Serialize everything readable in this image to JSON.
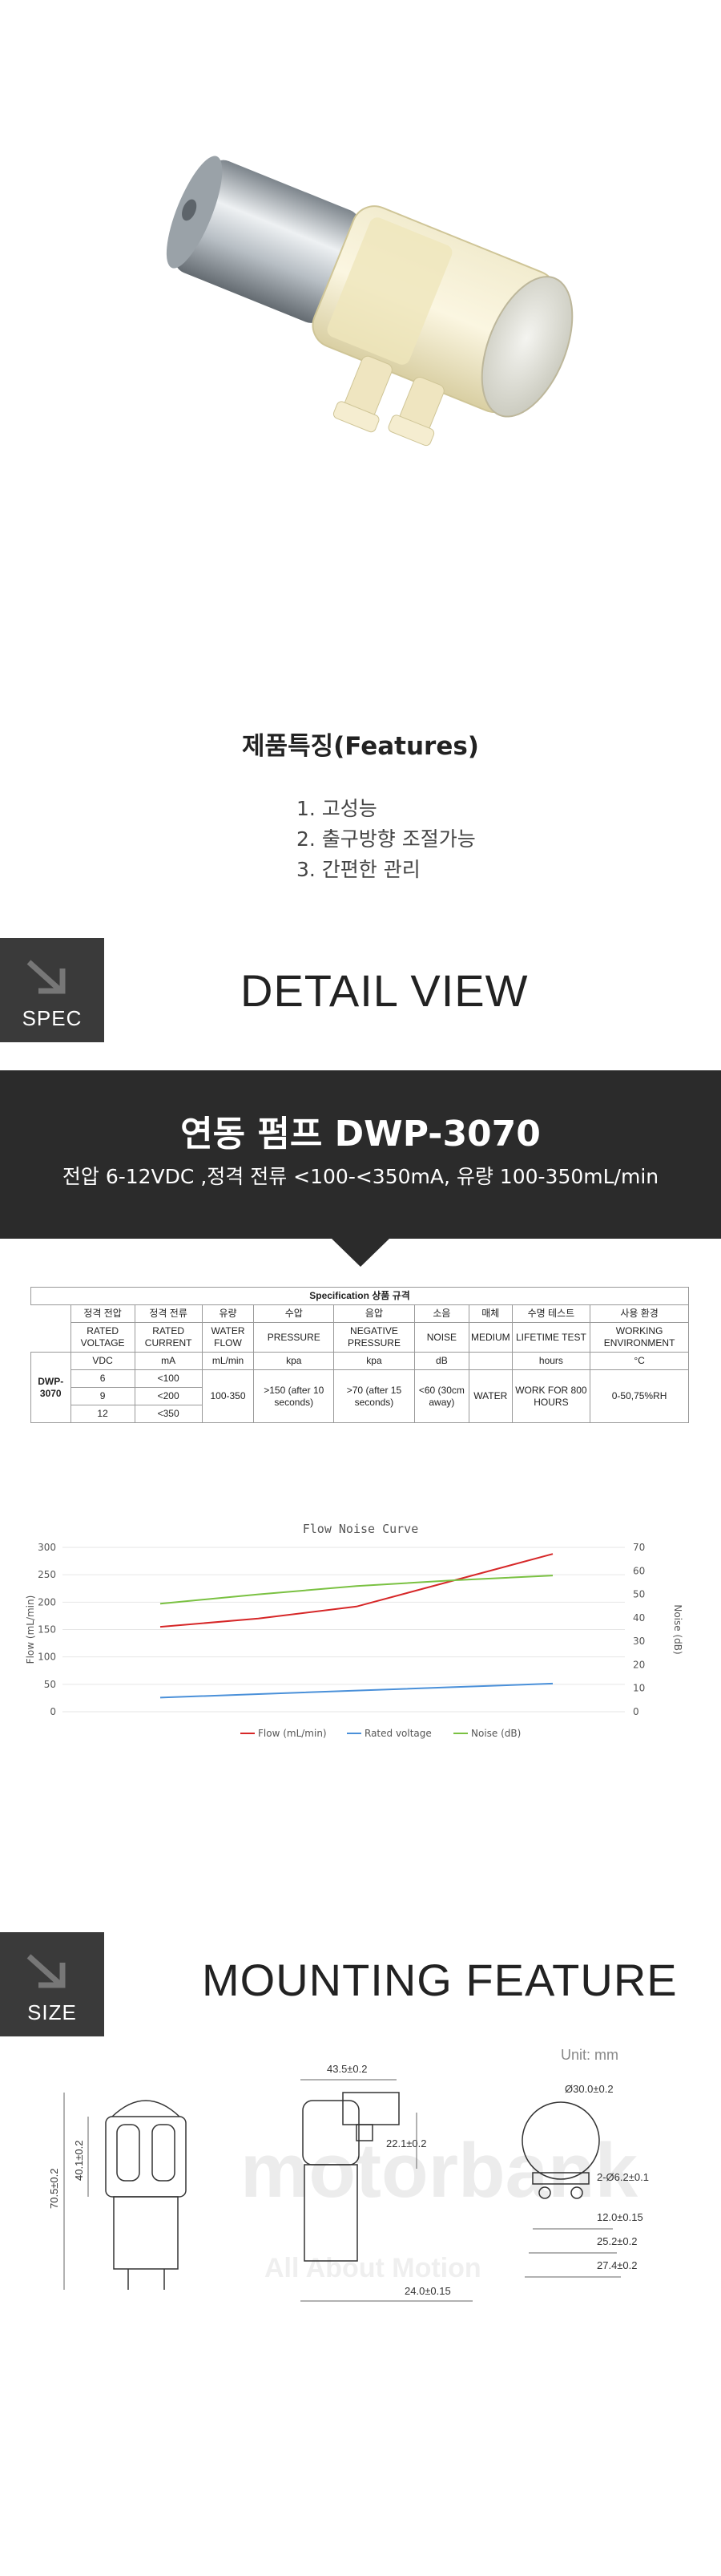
{
  "features": {
    "title": "제품특징(Features)",
    "items": [
      "1. 고성능",
      "2. 출구방향 조절가능",
      "3. 간편한 관리"
    ]
  },
  "spec_section": {
    "badge": "SPEC",
    "title": "DETAIL VIEW"
  },
  "banner": {
    "title": "연동 펌프 DWP-3070",
    "subtitle": "전압 6-12VDC ,정격 전류 <100-<350mA, 유량 100-350mL/min"
  },
  "spec_table": {
    "caption": "Specification 상품 규격",
    "kr_headers": [
      "정격 전압",
      "정격 전류",
      "유량",
      "수압",
      "음압",
      "소음",
      "매체",
      "수명 테스트",
      "사용 환경"
    ],
    "en_headers": [
      "RATED VOLTAGE",
      "RATED CURRENT",
      "WATER FLOW",
      "PRESSURE",
      "NEGATIVE PRESSURE",
      "NOISE",
      "MEDIUM",
      "LIFETIME TEST",
      "WORKING ENVIRONMENT"
    ],
    "units": [
      "VDC",
      "mA",
      "mL/min",
      "kpa",
      "kpa",
      "dB",
      "",
      "hours",
      "°C"
    ],
    "model": "DWP-3070",
    "rows": [
      [
        "6",
        "<100"
      ],
      [
        "9",
        "<200"
      ],
      [
        "12",
        "<350"
      ]
    ],
    "flow": "100-350",
    "pressure": ">150 (after 10 seconds)",
    "negative_pressure": ">70 (after 15 seconds)",
    "noise": "<60 (30cm away)",
    "medium": "WATER",
    "lifetime": "WORK FOR 800 HOURS",
    "environment": "0-50,75%RH"
  },
  "chart_data": {
    "type": "line",
    "title": "Flow Noise Curve",
    "x": [
      1,
      2,
      3,
      4,
      5
    ],
    "left_axis": {
      "label": "Flow (mL/min)",
      "ticks": [
        0,
        50,
        100,
        150,
        200,
        250,
        300
      ],
      "range": [
        0,
        300
      ]
    },
    "right_axis": {
      "label": "Noise (dB)",
      "ticks": [
        0,
        10,
        20,
        30,
        40,
        50,
        60,
        70
      ],
      "range": [
        0,
        70
      ]
    },
    "series": [
      {
        "name": "Flow (mL/min)",
        "axis": "left",
        "color": "#d62728",
        "values": [
          155,
          170,
          192,
          240,
          288
        ]
      },
      {
        "name": "Rated voltage",
        "axis": "right",
        "color": "#4a90d9",
        "values": [
          6,
          7.5,
          9,
          10.5,
          12
        ]
      },
      {
        "name": "Noise (dB)",
        "axis": "right",
        "color": "#7ac142",
        "values": [
          46,
          50,
          53.5,
          56,
          58
        ]
      }
    ],
    "legend": "bottom"
  },
  "size_section": {
    "badge": "SIZE",
    "title": "MOUNTING FEATURE",
    "unit": "Unit: mm"
  },
  "drawing": {
    "watermark": "motorbank",
    "watermark_sub": "All About Motion",
    "dims": {
      "height_total": "70.5±0.2",
      "height_body": "40.1±0.2",
      "width_top": "43.5±0.2",
      "side_h1": "22.1±0.2",
      "side_w": "24.0±0.15",
      "diameter": "Ø30.0±0.2",
      "holes": "2-Ø6.2±0.1",
      "w1": "12.0±0.15",
      "w2": "25.2±0.2",
      "w3": "27.4±0.2"
    }
  }
}
